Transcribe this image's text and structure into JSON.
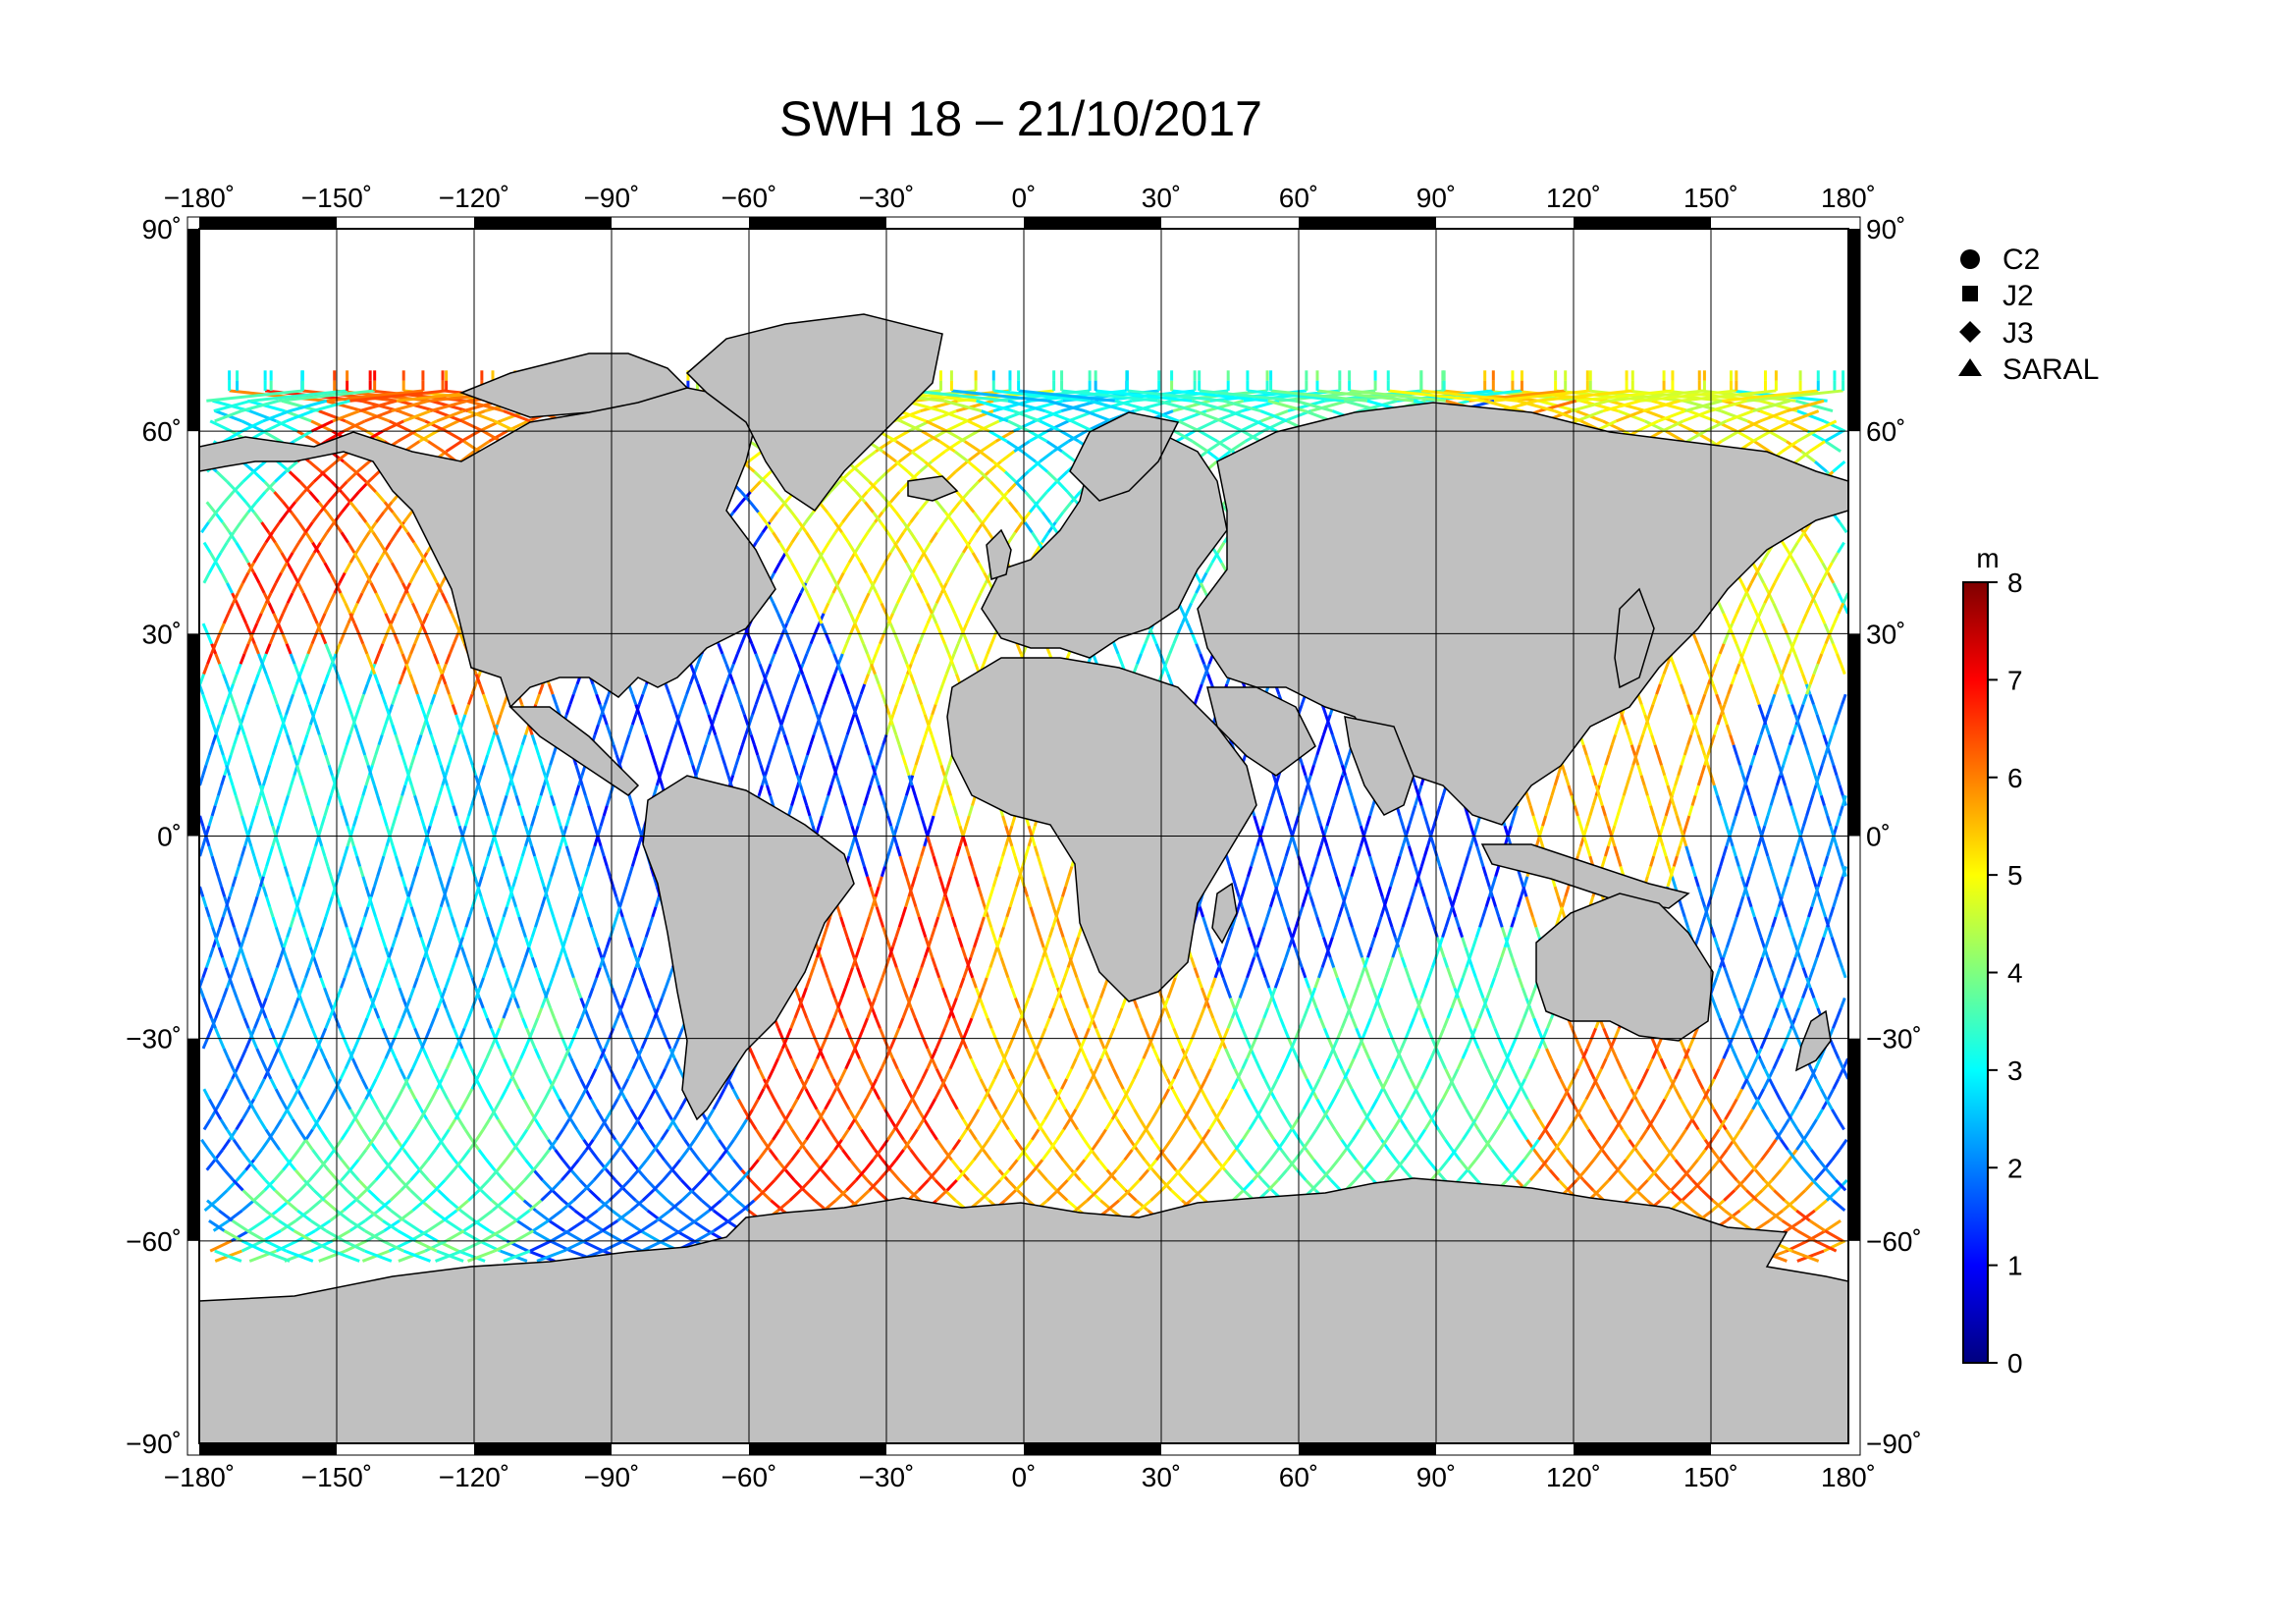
{
  "title": "SWH 18 – 21/10/2017",
  "map": {
    "projection": "equirectangular",
    "lon_range": [
      -180,
      180
    ],
    "lat_range": [
      -90,
      90
    ],
    "lon_ticks": [
      -180,
      -150,
      -120,
      -90,
      -60,
      -30,
      0,
      30,
      60,
      90,
      120,
      150,
      180
    ],
    "lat_ticks": [
      90,
      60,
      30,
      0,
      -30,
      -60,
      -90
    ],
    "lon_tick_labels": [
      "−180˚",
      "−150˚",
      "−120˚",
      "−90˚",
      "−60˚",
      "−30˚",
      "0˚",
      "30˚",
      "60˚",
      "90˚",
      "120˚",
      "150˚",
      "180˚"
    ],
    "lat_tick_labels": [
      "90˚",
      "60˚",
      "30˚",
      "0˚",
      "−30˚",
      "−60˚",
      "−90˚"
    ],
    "grid": true,
    "land_color": "#c0c0c0",
    "ocean_color": "#ffffff"
  },
  "legend": {
    "placement": "top-right",
    "items": [
      {
        "label": "C2",
        "marker": "circle"
      },
      {
        "label": "J2",
        "marker": "square"
      },
      {
        "label": "J3",
        "marker": "diamond"
      },
      {
        "label": "SARAL",
        "marker": "triangle"
      }
    ]
  },
  "colorbar": {
    "unit": "m",
    "min": 0,
    "max": 8,
    "tick_labels": [
      "8",
      "7",
      "6",
      "5",
      "4",
      "3",
      "2",
      "1",
      "0"
    ],
    "colormap": [
      "#00007f",
      "#0000ff",
      "#007fff",
      "#00ffff",
      "#7fff7f",
      "#ffff00",
      "#ff7f00",
      "#ff0000",
      "#7f0000"
    ]
  },
  "chart_data": {
    "type": "scatter",
    "title": "SWH 18 – 21/10/2017",
    "xlabel": "",
    "ylabel": "",
    "xlim": [
      -180,
      180
    ],
    "ylim": [
      -90,
      90
    ],
    "value_unit": "m",
    "value_range": [
      0,
      8
    ],
    "series": [
      {
        "name": "C2"
      },
      {
        "name": "J2"
      },
      {
        "name": "J3"
      },
      {
        "name": "SARAL"
      }
    ],
    "tracks": [
      {
        "lon": -170,
        "lat": 55,
        "swh": 3.2
      },
      {
        "lon": -155,
        "lat": 45,
        "swh": 6.5
      },
      {
        "lon": -140,
        "lat": 40,
        "swh": 6.0
      },
      {
        "lon": -150,
        "lat": 10,
        "swh": 3.0
      },
      {
        "lon": -130,
        "lat": -20,
        "swh": 2.5
      },
      {
        "lon": -120,
        "lat": -45,
        "swh": 3.5
      },
      {
        "lon": -90,
        "lat": -55,
        "swh": 1.8
      },
      {
        "lon": -60,
        "lat": 20,
        "swh": 1.5
      },
      {
        "lon": -30,
        "lat": 45,
        "swh": 5.0
      },
      {
        "lon": -30,
        "lat": -45,
        "swh": 6.5
      },
      {
        "lon": 0,
        "lat": -50,
        "swh": 5.5
      },
      {
        "lon": 20,
        "lat": 70,
        "swh": 3.0
      },
      {
        "lon": 40,
        "lat": 75,
        "swh": 3.5
      },
      {
        "lon": 80,
        "lat": 10,
        "swh": 1.5
      },
      {
        "lon": 90,
        "lat": -45,
        "swh": 3.5
      },
      {
        "lon": 130,
        "lat": 20,
        "swh": 5.5
      },
      {
        "lon": 130,
        "lat": -55,
        "swh": 6.0
      },
      {
        "lon": 160,
        "lat": 50,
        "swh": 5.0
      },
      {
        "lon": 170,
        "lat": -10,
        "swh": 2.0
      }
    ]
  }
}
